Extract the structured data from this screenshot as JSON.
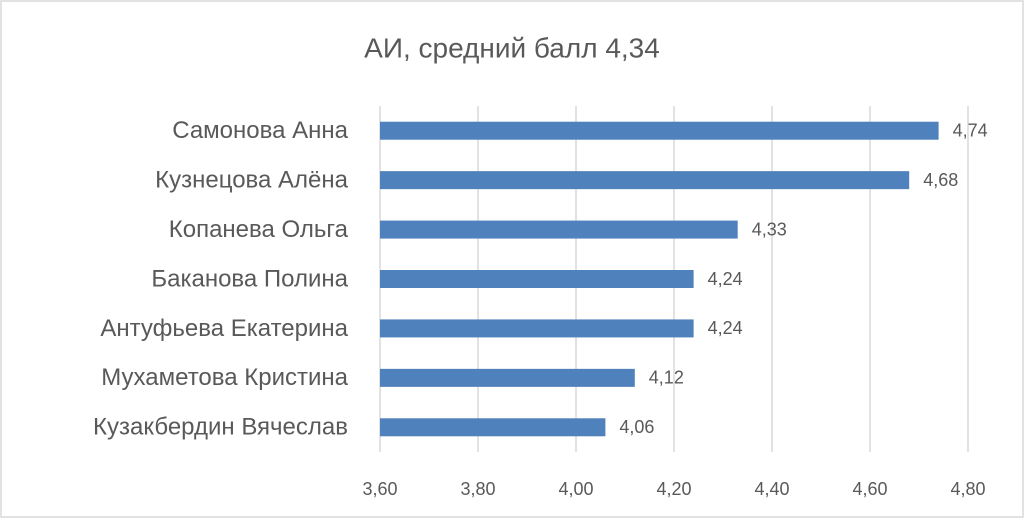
{
  "chart_data": {
    "type": "bar",
    "orientation": "horizontal",
    "title": "АИ, средний балл 4,34",
    "categories": [
      "Самонова Анна",
      "Кузнецова Алёна",
      "Копанева Ольга",
      "Баканова Полина",
      "Антуфьева Екатерина",
      "Мухаметова Кристина",
      "Кузакбердин Вячеслав"
    ],
    "values": [
      4.74,
      4.68,
      4.33,
      4.24,
      4.24,
      4.12,
      4.06
    ],
    "value_labels": [
      "4,74",
      "4,68",
      "4,33",
      "4,24",
      "4,24",
      "4,12",
      "4,06"
    ],
    "color": "#4f81bd",
    "xlim": [
      3.6,
      4.8
    ],
    "xticks": [
      {
        "value": 3.6,
        "label": "3,60"
      },
      {
        "value": 3.8,
        "label": "3,80"
      },
      {
        "value": 4.0,
        "label": "4,00"
      },
      {
        "value": 4.2,
        "label": "4,20"
      },
      {
        "value": 4.4,
        "label": "4,40"
      },
      {
        "value": 4.6,
        "label": "4,60"
      },
      {
        "value": 4.8,
        "label": "4,80"
      }
    ],
    "grid": true
  }
}
